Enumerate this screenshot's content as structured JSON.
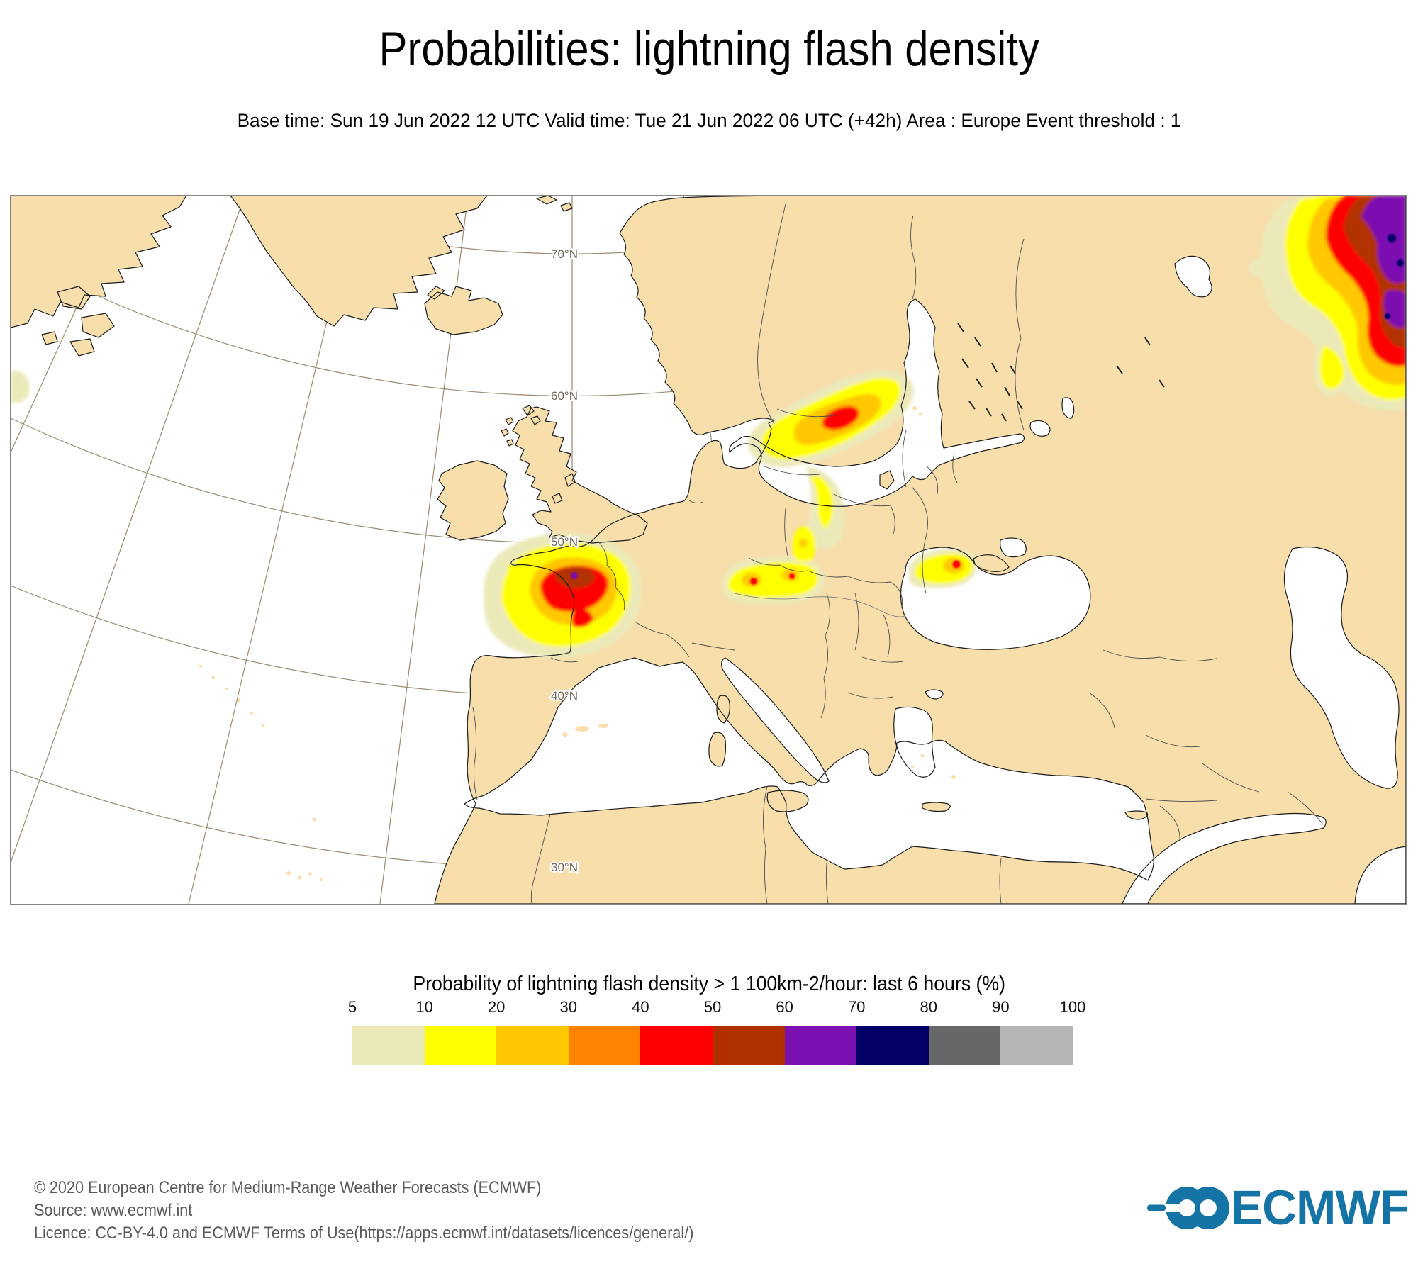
{
  "header": {
    "title": "Probabilities: lightning flash density",
    "subtitle": "Base time: Sun 19 Jun 2022 12 UTC Valid time: Tue 21 Jun 2022 06 UTC (+42h) Area : Europe Event threshold : 1"
  },
  "map": {
    "latitude_labels": [
      "70°N",
      "60°N",
      "50°N",
      "40°N",
      "30°N"
    ],
    "land_color": "#f7deab",
    "sea_color": "#ffffff",
    "graticule_color": "#9b8a72",
    "coast_color": "#1c1c1c",
    "border_color": "#4d4d4d",
    "frame_color": "#858585",
    "hotspots": [
      {
        "region": "northeast corner (NW Russia / Urals)",
        "peak_probability_band": "70-80 and 80+ (purple with navy cores)"
      },
      {
        "region": "western France",
        "peak_probability_band": "50-60 with small 60-70 core"
      },
      {
        "region": "Belarus / western Russia",
        "peak_probability_band": "40-50 core"
      },
      {
        "region": "Pannonian basin (Croatia/Hungary/Serbia)",
        "peak_probability_band": "40-50 small cores"
      },
      {
        "region": "northeast Black Sea / Azov coast",
        "peak_probability_band": "40-50 core"
      },
      {
        "region": "left map edge (Atlantic)",
        "peak_probability_band": "5-10"
      }
    ]
  },
  "legend": {
    "title": "Probability of lightning flash density > 1 100km-2/hour: last 6 hours (%)",
    "tick_labels": [
      "5",
      "10",
      "20",
      "30",
      "40",
      "50",
      "60",
      "70",
      "80",
      "90",
      "100"
    ],
    "colors": [
      "#ece9b9",
      "#ffff00",
      "#ffc800",
      "#ff8200",
      "#ff0000",
      "#b23000",
      "#7b11b1",
      "#000066",
      "#676767",
      "#b5b5b5"
    ]
  },
  "footer": {
    "lines": [
      "© 2020 European Centre for Medium-Range Weather Forecasts (ECMWF)",
      "Source: www.ecmwf.int",
      "Licence: CC-BY-4.0 and ECMWF Terms of Use(https://apps.ecmwf.int/datasets/licences/general/)"
    ],
    "logo_text": "ECMWF",
    "logo_color": "#1474a6"
  }
}
